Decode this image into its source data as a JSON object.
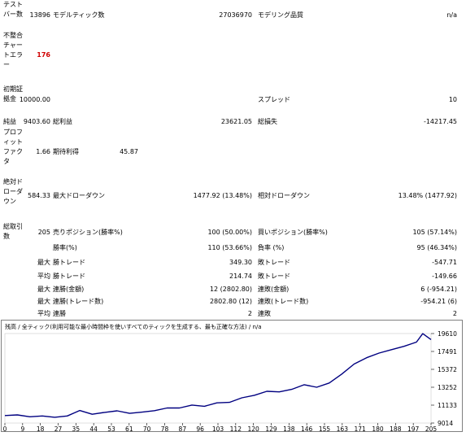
{
  "report": {
    "bars_label": "テストバー数",
    "bars_value": "13896",
    "model_ticks_label": "モデルティック数",
    "model_ticks_value": "27036970",
    "model_quality_label": "モデリング品質",
    "model_quality_value": "n/a",
    "mismatch_label": "不整合チャートエラー",
    "mismatch_value": "176",
    "deposit_label": "初期証拠金",
    "deposit_value": "10000.00",
    "spread_label": "スプレッド",
    "spread_value": "10",
    "net_label": "純益",
    "net_value": "9403.60",
    "gross_profit_label": "総利益",
    "gross_profit_value": "23621.05",
    "gross_loss_label": "総損失",
    "gross_loss_value": "-14217.45",
    "pf_label": "プロフィットファクタ",
    "pf_value": "1.66",
    "expected_label": "期待利得",
    "expected_value": "45.87",
    "abs_dd_label": "絶対ドローダウン",
    "abs_dd_value": "584.33",
    "max_dd_label": "最大ドローダウン",
    "max_dd_value": "1477.92 (13.48%)",
    "rel_dd_label": "相対ドローダウン",
    "rel_dd_value": "13.48% (1477.92)",
    "trades_label": "総取引数",
    "trades_value": "205",
    "short_label": "売りポジション(勝率%)",
    "short_value": "100 (50.00%)",
    "long_label": "買いポジション(勝率%)",
    "long_value": "105 (57.14%)",
    "win_label": "勝率(%)",
    "win_value": "110 (53.66%)",
    "loss_label": "負率 (%)",
    "loss_value": "95 (46.34%)",
    "max_a": "最大",
    "max_win_label": "勝トレード",
    "max_win_value": "349.30",
    "max_loss_label": "敗トレード",
    "max_loss_value": "-547.71",
    "avg_a": "平均",
    "avg_win_label": "勝トレード",
    "avg_win_value": "214.74",
    "avg_loss_label": "敗トレード",
    "avg_loss_value": "-149.66",
    "max_b": "最大",
    "cons_win_amt_label": "連勝(金額)",
    "cons_win_amt_value": "12 (2802.80)",
    "cons_loss_amt_label": "連敗(金額)",
    "cons_loss_amt_value": "6 (-954.21)",
    "max_c": "最大",
    "cons_win_tr_label": "連勝(トレード数)",
    "cons_win_tr_value": "2802.80 (12)",
    "cons_loss_tr_label": "連敗(トレード数)",
    "cons_loss_tr_value": "-954.21 (6)",
    "avg_b": "平均",
    "avg_cons_win_label": "連勝",
    "avg_cons_win_value": "2",
    "avg_cons_loss_label": "連敗",
    "avg_cons_loss_value": "2"
  },
  "chart_header": "残高 / 全ティック(利用可能な最小時間枠を使いすべてのティックを生成する、最も正確な方法) / n/a",
  "chart_data": {
    "type": "line",
    "series": [
      {
        "color": "#000080",
        "x": [
          0,
          6,
          12,
          18,
          24,
          30,
          36,
          42,
          48,
          54,
          60,
          66,
          72,
          78,
          84,
          90,
          96,
          102,
          108,
          114,
          120,
          126,
          132,
          138,
          144,
          150,
          156,
          162,
          168,
          174,
          180,
          186,
          192,
          198,
          201,
          205
        ],
        "values": [
          9900,
          9980,
          9760,
          9850,
          9700,
          9850,
          10500,
          10050,
          10280,
          10460,
          10160,
          10300,
          10480,
          10800,
          10800,
          11140,
          11000,
          11400,
          11460,
          12000,
          12300,
          12770,
          12700,
          13000,
          13550,
          13250,
          13750,
          14800,
          16000,
          16750,
          17300,
          17700,
          18100,
          18600,
          19600,
          18900
        ]
      }
    ],
    "x_ticks": [
      "0",
      "9",
      "18",
      "27",
      "35",
      "44",
      "53",
      "61",
      "70",
      "78",
      "87",
      "96",
      "103",
      "112",
      "120",
      "129",
      "138",
      "146",
      "155",
      "163",
      "171",
      "180",
      "188",
      "197",
      "205"
    ],
    "y_ticks": [
      "19610",
      "17491",
      "15372",
      "13252",
      "11133",
      "9014"
    ],
    "ylim": [
      9014,
      19610
    ],
    "xlim": [
      0,
      205
    ]
  }
}
